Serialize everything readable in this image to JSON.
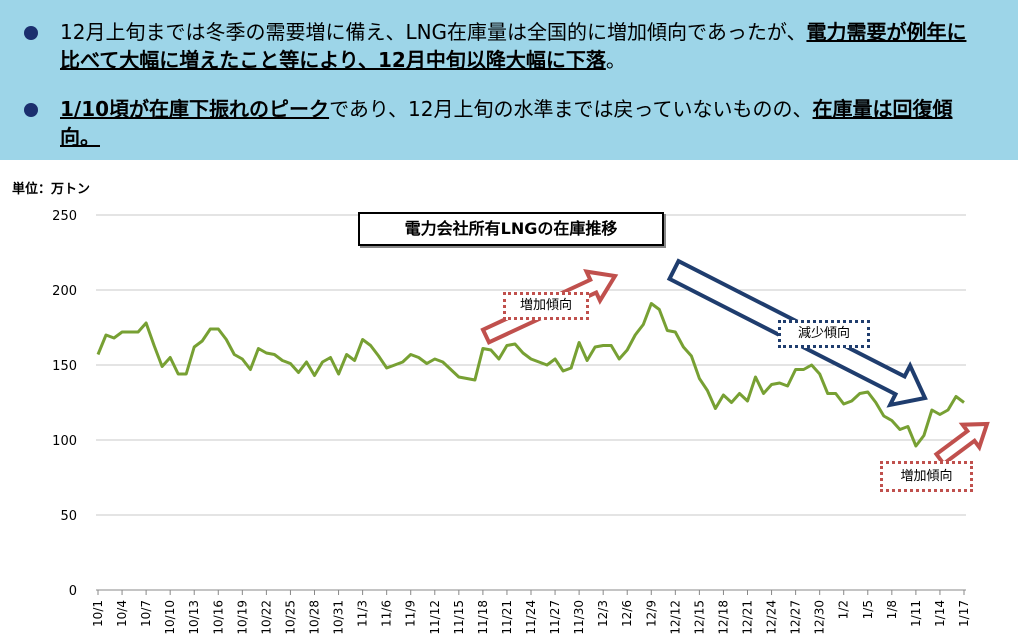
{
  "banner": {
    "bullets": [
      {
        "parts": [
          {
            "text": "12月上旬までは冬季の需要増に備え、LNG在庫量は全国的に増加傾向であったが、",
            "bold": false
          },
          {
            "text": "電力需要が例年に比べて大幅に増えたこと等により、12月中旬以降大幅に下落",
            "bold": true
          },
          {
            "text": "。",
            "bold": false
          }
        ]
      },
      {
        "parts": [
          {
            "text": "1/10頃が在庫下振れのピーク",
            "bold": true
          },
          {
            "text": "であり、12月上旬の水準までは戻っていないものの、",
            "bold": false
          },
          {
            "text": "在庫量は回復傾向。",
            "bold": true
          }
        ]
      }
    ]
  },
  "unit_label": "単位：万トン",
  "annotations": {
    "increase_1": "増加傾向",
    "decrease": "減少傾向",
    "increase_2": "増加傾向"
  },
  "colors": {
    "line": "#77a033",
    "grid": "#c8c8c8",
    "arrow_red": "#c0504d",
    "arrow_blue": "#1f3d6e",
    "banner_bg": "#9dd5e8",
    "bullet": "#1b2f6e"
  },
  "chart_data": {
    "type": "line",
    "title": "電力会社所有LNGの在庫推移",
    "ylabel": "単位：万トン",
    "ylim": [
      0,
      250
    ],
    "yticks": [
      0,
      50,
      100,
      150,
      200,
      250
    ],
    "grid": true,
    "x_tick_labels": [
      "10/1",
      "10/4",
      "10/7",
      "10/10",
      "10/13",
      "10/16",
      "10/19",
      "10/22",
      "10/25",
      "10/28",
      "10/31",
      "11/3",
      "11/6",
      "11/9",
      "11/12",
      "11/15",
      "11/18",
      "11/21",
      "11/24",
      "11/27",
      "11/30",
      "12/3",
      "12/6",
      "12/9",
      "12/12",
      "12/15",
      "12/18",
      "12/21",
      "12/24",
      "12/27",
      "12/30",
      "1/2",
      "1/5",
      "1/8",
      "1/11",
      "1/14",
      "1/17"
    ],
    "series": [
      {
        "values": [
          157,
          170,
          168,
          172,
          172,
          172,
          178,
          163,
          149,
          155,
          144,
          144,
          162,
          166,
          174,
          174,
          167,
          157,
          154,
          147,
          161,
          158,
          157,
          153,
          151,
          145,
          152,
          143,
          152,
          155,
          144,
          157,
          153,
          167,
          163,
          156,
          148,
          150,
          152,
          157,
          155,
          151,
          154,
          152,
          147,
          142,
          141,
          140,
          161,
          160,
          154,
          163,
          164,
          158,
          154,
          152,
          150,
          154,
          146,
          148,
          165,
          153,
          162,
          163,
          163,
          154,
          160,
          170,
          177,
          191,
          187,
          173,
          172,
          162,
          156,
          141,
          133,
          121,
          130,
          125,
          131,
          126,
          142,
          131,
          137,
          138,
          136,
          147,
          147,
          150,
          144,
          131,
          131,
          124,
          126,
          131,
          132,
          125,
          116,
          113,
          107,
          109,
          96,
          103,
          120,
          117,
          120,
          129,
          125
        ]
      }
    ]
  }
}
